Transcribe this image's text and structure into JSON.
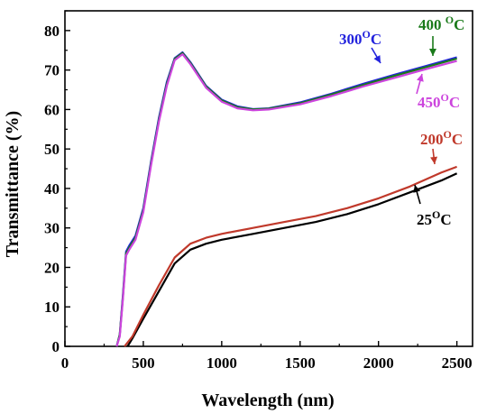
{
  "chart_data": {
    "type": "line",
    "title": "",
    "xlabel": "Wavelength (nm)",
    "ylabel": "Transmittance (%)",
    "xlim": [
      0,
      2600
    ],
    "ylim": [
      0,
      85
    ],
    "xticks": [
      0,
      500,
      1000,
      1500,
      2000,
      2500
    ],
    "yticks": [
      0,
      10,
      20,
      30,
      40,
      50,
      60,
      70,
      80
    ],
    "grid": false,
    "legend": "none",
    "series": [
      {
        "name": "25°C",
        "color": "#000000",
        "x": [
          400,
          430,
          500,
          600,
          700,
          800,
          900,
          1000,
          1200,
          1400,
          1600,
          1800,
          2000,
          2200,
          2400,
          2500
        ],
        "y": [
          0,
          2,
          7,
          14,
          21,
          24.5,
          26,
          27,
          28.5,
          30,
          31.5,
          33.5,
          36,
          39,
          42,
          43.8
        ]
      },
      {
        "name": "200°C",
        "color": "#c0392b",
        "x": [
          380,
          430,
          500,
          600,
          700,
          800,
          900,
          1000,
          1200,
          1400,
          1600,
          1800,
          2000,
          2200,
          2400,
          2500
        ],
        "y": [
          0,
          2.5,
          8,
          15.5,
          22.5,
          26,
          27.5,
          28.5,
          30,
          31.5,
          33,
          35,
          37.5,
          40.5,
          44,
          45.5
        ]
      },
      {
        "name": "300°C",
        "color": "#2222dd",
        "x": [
          330,
          350,
          370,
          390,
          410,
          450,
          500,
          550,
          600,
          650,
          700,
          750,
          800,
          900,
          1000,
          1100,
          1200,
          1300,
          1500,
          1700,
          1900,
          2100,
          2300,
          2500
        ],
        "y": [
          0,
          3,
          13,
          24,
          25.5,
          28,
          35,
          47,
          58,
          67,
          73,
          74.5,
          72,
          66,
          62.5,
          60.8,
          60.1,
          60.3,
          61.8,
          64,
          66.5,
          68.8,
          71,
          73.2
        ]
      },
      {
        "name": "400 °C",
        "color": "#1a7a1a",
        "x": [
          330,
          350,
          370,
          390,
          410,
          450,
          500,
          550,
          600,
          650,
          700,
          750,
          800,
          900,
          1000,
          1100,
          1200,
          1300,
          1500,
          1700,
          1900,
          2100,
          2300,
          2500
        ],
        "y": [
          0,
          3,
          12.5,
          23.5,
          25,
          27.5,
          34.5,
          46.5,
          57.5,
          66.5,
          72.8,
          74.3,
          71.8,
          65.8,
          62.3,
          60.6,
          60,
          60.2,
          61.6,
          63.8,
          66.2,
          68.5,
          70.7,
          72.9
        ]
      },
      {
        "name": "450°C",
        "color": "#cc44dd",
        "x": [
          330,
          350,
          370,
          390,
          410,
          450,
          500,
          550,
          600,
          650,
          700,
          750,
          800,
          900,
          1000,
          1100,
          1200,
          1300,
          1500,
          1700,
          1900,
          2100,
          2300,
          2500
        ],
        "y": [
          0,
          2.5,
          12,
          23,
          24.5,
          27,
          34,
          46,
          57,
          66,
          72.5,
          74,
          71.5,
          65.5,
          62,
          60.3,
          59.8,
          60,
          61.3,
          63.4,
          65.8,
          68,
          70.2,
          72.3
        ]
      }
    ],
    "annotations": [
      {
        "base": "300",
        "sup": "O",
        "tail": "C",
        "color": "#2222dd"
      },
      {
        "base": "400 ",
        "sup": "O",
        "tail": "C",
        "color": "#1a7a1a"
      },
      {
        "base": "450",
        "sup": "O",
        "tail": "C",
        "color": "#cc44dd"
      },
      {
        "base": "200",
        "sup": "O",
        "tail": "C",
        "color": "#c0392b"
      },
      {
        "base": "25",
        "sup": "O",
        "tail": "C",
        "color": "#000000"
      }
    ]
  }
}
